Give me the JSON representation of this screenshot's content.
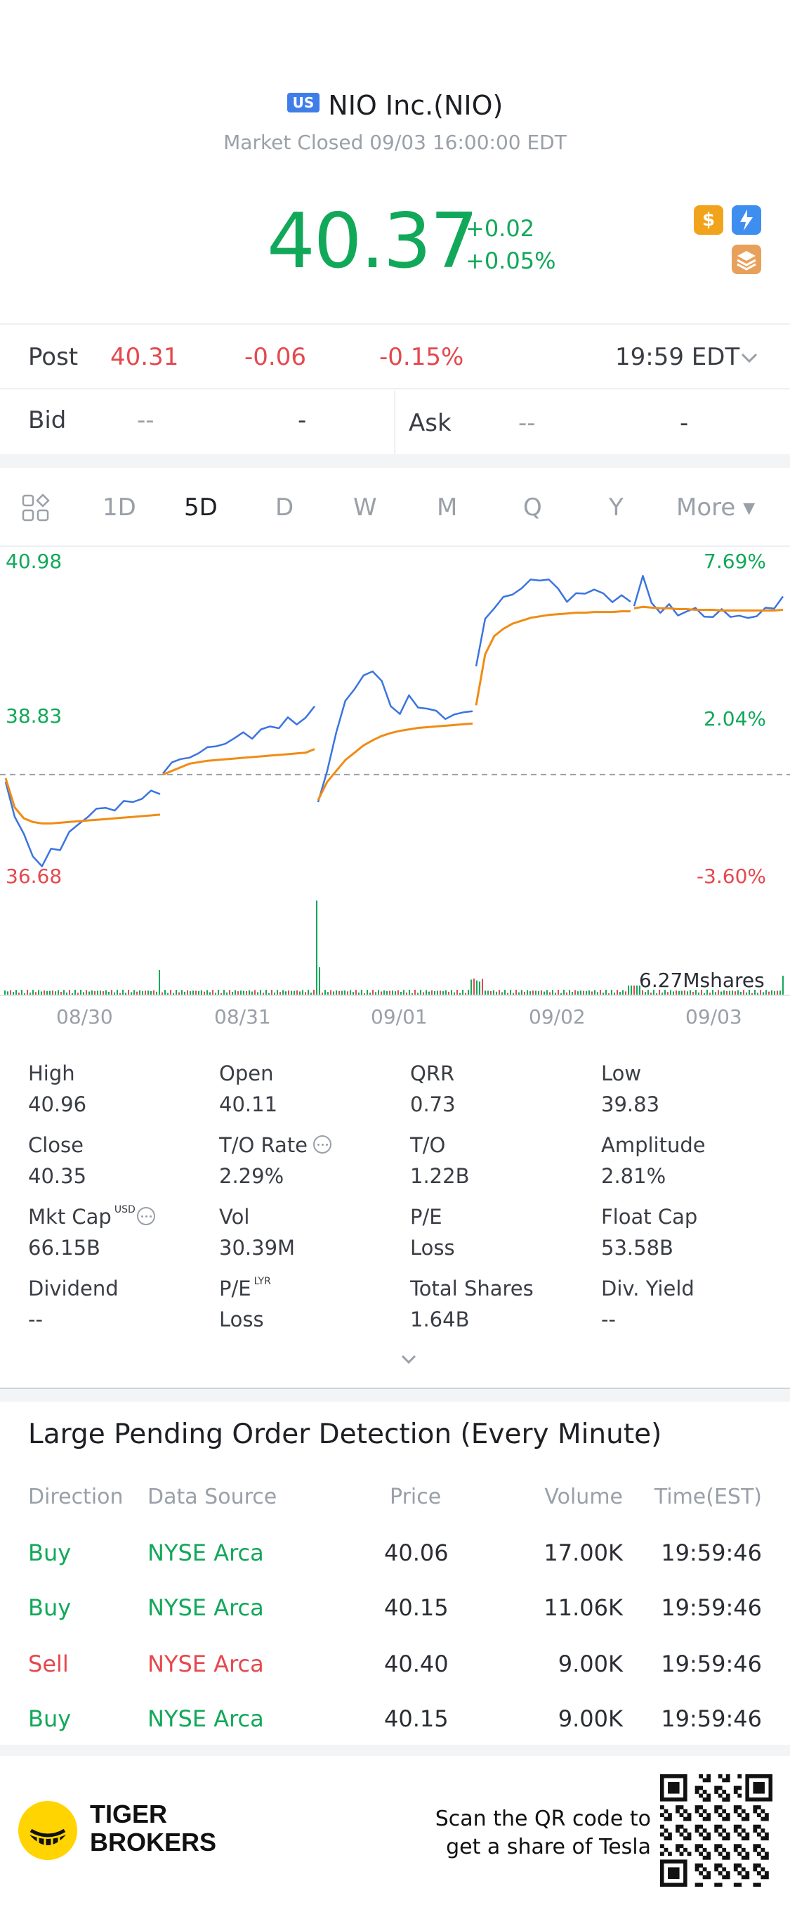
{
  "header": {
    "market_badge": "US",
    "title": "NIO Inc.(NIO)",
    "status": "Market Closed 09/03 16:00:00 EDT",
    "price": "40.37",
    "change": "+0.02",
    "change_pct": "+0.05%",
    "icons": [
      "dollar-icon",
      "flash-icon",
      "layers-icon"
    ],
    "accent_up": "#12a85a",
    "accent_down": "#e5484d"
  },
  "post": {
    "label": "Post",
    "price": "40.31",
    "change": "-0.06",
    "change_pct": "-0.15%",
    "time": "19:59 EDT"
  },
  "quote": {
    "bid_label": "Bid",
    "bid_price": "--",
    "bid_size": "-",
    "ask_label": "Ask",
    "ask_price": "--",
    "ask_size": "-"
  },
  "tabs": [
    "1D",
    "5D",
    "D",
    "W",
    "M",
    "Q",
    "Y",
    "More ▾"
  ],
  "active_tab": "5D",
  "chart_data": {
    "type": "line",
    "title": "",
    "y_left_ticks": [
      "40.98",
      "38.83",
      "36.68"
    ],
    "y_right_ticks": [
      "7.69%",
      "2.04%",
      "-3.60%"
    ],
    "ylim": [
      36.68,
      40.98
    ],
    "prev_close": 38.05,
    "x_labels": [
      "08/30",
      "08/31",
      "09/01",
      "09/02",
      "09/03"
    ],
    "volume_label": "6.27Mshares",
    "series": [
      {
        "color": "#3b74e0",
        "values": [
          [
            37.95,
            37.5,
            37.2,
            36.95,
            36.8,
            37.0,
            37.05,
            37.25,
            37.35,
            37.5,
            37.55,
            37.6,
            37.58,
            37.65,
            37.7,
            37.72,
            37.8,
            37.82
          ],
          [
            38.05,
            38.2,
            38.3,
            38.25,
            38.35,
            38.45,
            38.4,
            38.5,
            38.55,
            38.6,
            38.58,
            38.65,
            38.7,
            38.72,
            38.8,
            38.75,
            38.85,
            38.95
          ],
          [
            37.7,
            38.1,
            38.6,
            39.1,
            39.2,
            39.4,
            39.5,
            39.3,
            39.0,
            38.9,
            39.1,
            39.0,
            38.95,
            38.9,
            38.85,
            38.85,
            38.9,
            38.95
          ],
          [
            39.5,
            40.2,
            40.35,
            40.45,
            40.55,
            40.6,
            40.7,
            40.75,
            40.7,
            40.6,
            40.45,
            40.5,
            40.55,
            40.6,
            40.5,
            40.45,
            40.5,
            40.4
          ],
          [
            40.4,
            40.75,
            40.4,
            40.3,
            40.35,
            40.25,
            40.3,
            40.3,
            40.25,
            40.2,
            40.3,
            40.25,
            40.2,
            40.2,
            40.25,
            40.3,
            40.35,
            40.5
          ]
        ]
      },
      {
        "color": "#ef8c15",
        "values": [
          [
            38.0,
            37.6,
            37.45,
            37.4,
            37.38,
            37.38,
            37.39,
            37.4,
            37.41,
            37.42,
            37.43,
            37.44,
            37.45,
            37.46,
            37.47,
            37.48,
            37.49,
            37.5
          ],
          [
            38.05,
            38.1,
            38.15,
            38.2,
            38.22,
            38.24,
            38.25,
            38.26,
            38.27,
            38.28,
            38.29,
            38.3,
            38.31,
            38.32,
            38.33,
            38.34,
            38.35,
            38.4
          ],
          [
            37.7,
            37.95,
            38.1,
            38.25,
            38.35,
            38.45,
            38.52,
            38.58,
            38.62,
            38.65,
            38.67,
            38.69,
            38.7,
            38.71,
            38.72,
            38.73,
            38.74,
            38.75
          ],
          [
            39.0,
            39.7,
            39.95,
            40.05,
            40.12,
            40.16,
            40.2,
            40.22,
            40.24,
            40.25,
            40.26,
            40.27,
            40.27,
            40.28,
            40.28,
            40.28,
            40.29,
            40.29
          ],
          [
            40.33,
            40.35,
            40.34,
            40.33,
            40.33,
            40.32,
            40.32,
            40.31,
            40.31,
            40.31,
            40.3,
            40.3,
            40.3,
            40.3,
            40.3,
            40.3,
            40.3,
            40.31
          ]
        ]
      }
    ]
  },
  "stats": [
    {
      "label": "High",
      "value": "40.96"
    },
    {
      "label": "Open",
      "value": "40.11"
    },
    {
      "label": "QRR",
      "value": "0.73"
    },
    {
      "label": "Low",
      "value": "39.83"
    },
    {
      "label": "Close",
      "value": "40.35"
    },
    {
      "label": "T/O Rate",
      "value": "2.29%"
    },
    {
      "label": "T/O",
      "value": "1.22B"
    },
    {
      "label": "Amplitude",
      "value": "2.81%"
    },
    {
      "label": "Mkt Cap",
      "value": "66.15B",
      "sup": "USD"
    },
    {
      "label": "Vol",
      "value": "30.39M"
    },
    {
      "label": "P/E",
      "value": "Loss"
    },
    {
      "label": "Float Cap",
      "value": "53.58B"
    },
    {
      "label": "Dividend",
      "value": "--"
    },
    {
      "label": "P/E",
      "value": "Loss",
      "sup": "LYR"
    },
    {
      "label": "Total Shares",
      "value": "1.64B"
    },
    {
      "label": "Div. Yield",
      "value": "--"
    }
  ],
  "orders": {
    "title": "Large Pending Order Detection (Every Minute)",
    "headers": [
      "Direction",
      "Data Source",
      "Price",
      "Volume",
      "Time(EST)"
    ],
    "rows": [
      {
        "direction": "Buy",
        "source": "NYSE Arca",
        "price": "40.06",
        "volume": "17.00K",
        "time": "19:59:46"
      },
      {
        "direction": "Buy",
        "source": "NYSE Arca",
        "price": "40.15",
        "volume": "11.06K",
        "time": "19:59:46"
      },
      {
        "direction": "Sell",
        "source": "NYSE Arca",
        "price": "40.40",
        "volume": "9.00K",
        "time": "19:59:46"
      },
      {
        "direction": "Buy",
        "source": "NYSE Arca",
        "price": "40.15",
        "volume": "9.00K",
        "time": "19:59:46"
      }
    ]
  },
  "footer": {
    "brand_line1": "TIGER",
    "brand_line2": "BROKERS",
    "scan_line1": "Scan the QR code to",
    "scan_line2": "get a share of Tesla"
  }
}
